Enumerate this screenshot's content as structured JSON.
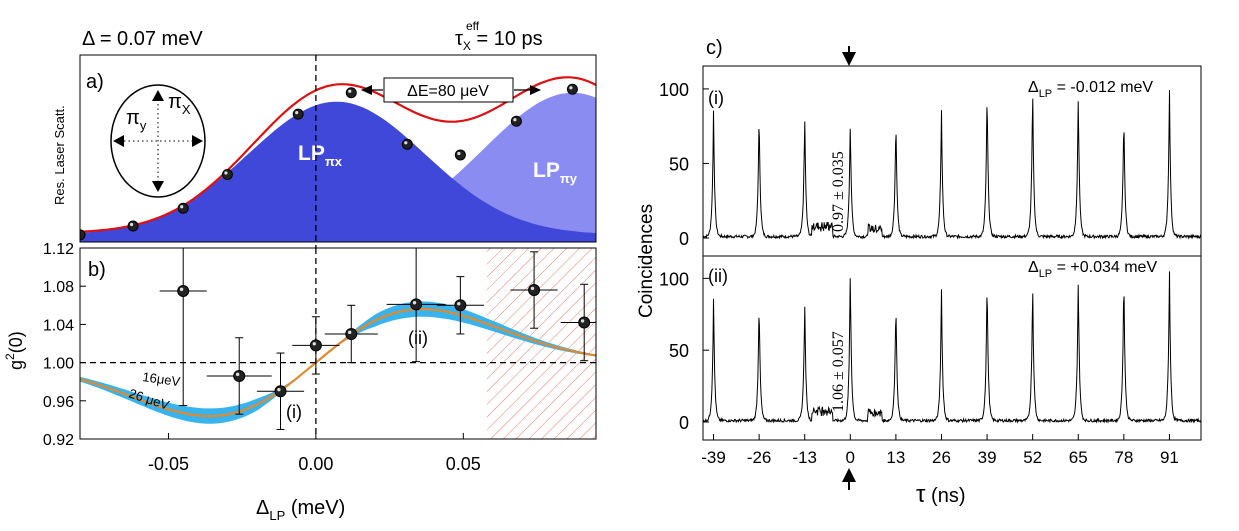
{
  "chart_data": [
    {
      "panel": "a",
      "type": "area",
      "panel_label": "a)",
      "header_left": "Δ = 0.07 meV",
      "header_right_base": "τ",
      "header_right_sup": "eff",
      "header_right_sub": "X",
      "header_right_value": " = 10 ps",
      "ylabel": "Res. Laser Scatt.",
      "xlim": [
        -0.08,
        0.095
      ],
      "ylim": [
        0,
        1
      ],
      "energy_splitting_label": "ΔE=80 μeV",
      "inset": {
        "pi_x": "π",
        "pi_x_sub": "X",
        "pi_y": "π",
        "pi_y_sub": "y"
      },
      "series": [
        {
          "name": "LP_πx",
          "label_base": "LP",
          "label_sub": "πx",
          "color": "#3f48d9",
          "center": 0.007,
          "amplitude": 0.75,
          "width": 0.03
        },
        {
          "name": "LP_πy",
          "label_base": "LP",
          "label_sub": "πy",
          "color": "#8a8cf2",
          "center": 0.087,
          "amplitude": 0.8,
          "width": 0.03
        }
      ],
      "measured_points": {
        "x": [
          -0.08,
          -0.062,
          -0.045,
          -0.03,
          -0.006,
          0.012,
          0.031,
          0.049,
          0.068,
          0.087
        ],
        "y": [
          0.04,
          0.09,
          0.19,
          0.38,
          0.72,
          0.84,
          0.55,
          0.49,
          0.68,
          0.86
        ]
      },
      "fit_color": "#dd1111"
    },
    {
      "panel": "b",
      "type": "scatter",
      "panel_label": "b)",
      "ylabel_base": "g",
      "ylabel_sup": "2",
      "ylabel_tail": "(0)",
      "xlabel_base": "Δ",
      "xlabel_sub": "LP",
      "xlabel_tail": " (meV)",
      "xlim": [
        -0.08,
        0.095
      ],
      "ylim": [
        0.92,
        1.12
      ],
      "xticks": [
        -0.05,
        0.0,
        0.05
      ],
      "xtick_labels": [
        "-0.05",
        "0.00",
        "0.05"
      ],
      "yticks": [
        0.92,
        0.96,
        1.0,
        1.04,
        1.08,
        1.12
      ],
      "ytick_labels": [
        "0.92",
        "0.96",
        "1.00",
        "1.04",
        "1.08",
        "1.12"
      ],
      "points": [
        {
          "x": -0.045,
          "y": 1.075,
          "xerr": 0.008,
          "yerr": 0.12
        },
        {
          "x": -0.026,
          "y": 0.986,
          "xerr": 0.011,
          "yerr": 0.04
        },
        {
          "x": -0.012,
          "y": 0.97,
          "xerr": 0.008,
          "yerr": 0.04
        },
        {
          "x": 0.0,
          "y": 1.018,
          "xerr": 0.008,
          "yerr": 0.03
        },
        {
          "x": 0.012,
          "y": 1.03,
          "xerr": 0.009,
          "yerr": 0.03
        },
        {
          "x": 0.034,
          "y": 1.061,
          "xerr": 0.01,
          "yerr": 0.06
        },
        {
          "x": 0.049,
          "y": 1.06,
          "xerr": 0.008,
          "yerr": 0.03
        },
        {
          "x": 0.074,
          "y": 1.076,
          "xerr": 0.008,
          "yerr": 0.04
        },
        {
          "x": 0.091,
          "y": 1.042,
          "xerr": 0.008,
          "yerr": 0.04
        }
      ],
      "model": {
        "amplitude": 0.056,
        "amplitude_band": 0.008,
        "peak_position": 0.036
      },
      "reference_line_y": 1.0,
      "reference_line_x": 0.0,
      "hatched_region": [
        0.058,
        0.095
      ],
      "annotations": [
        "16μeV",
        "26 μeV",
        "(i)",
        "(ii)"
      ],
      "band_color": "#38b3ee",
      "curve_color": "#e08a2c"
    },
    {
      "panel": "c",
      "type": "line",
      "panel_label": "c)",
      "ylabel": "Coincidences",
      "xlabel_base": "τ",
      "xlabel_tail": " (ns)",
      "xlim": [
        -42,
        100
      ],
      "ylim": [
        0,
        110
      ],
      "xticks": [
        -39,
        -26,
        -13,
        0,
        13,
        26,
        39,
        52,
        65,
        78,
        91
      ],
      "xtick_labels": [
        "-39",
        "-26",
        "-13",
        "0",
        "13",
        "26",
        "39",
        "52",
        "65",
        "78",
        "91"
      ],
      "yticks": [
        0,
        50,
        100
      ],
      "ytick_labels": [
        "0",
        "50",
        "100"
      ],
      "subplots": [
        {
          "label": "(i)",
          "detuning_base": "Δ",
          "detuning_sub": "LP",
          "detuning_value": " = -0.012 meV",
          "g2_annotation": "0.97 ± 0.035",
          "peak_positions": [
            -39,
            -26,
            -13,
            0,
            13,
            26,
            39,
            52,
            65,
            78,
            91
          ],
          "peak_heights": [
            85,
            86,
            84,
            80,
            82,
            86,
            102,
            102,
            98,
            85,
            101
          ]
        },
        {
          "label": "(ii)",
          "detuning_base": "Δ",
          "detuning_sub": "LP",
          "detuning_value": " = +0.034 meV",
          "g2_annotation": "1.06 ± 0.057",
          "peak_positions": [
            -39,
            -26,
            -13,
            0,
            13,
            26,
            39,
            52,
            65,
            78,
            91
          ],
          "peak_heights": [
            86,
            87,
            86,
            108,
            87,
            93,
            102,
            98,
            102,
            105,
            106
          ]
        }
      ]
    }
  ]
}
